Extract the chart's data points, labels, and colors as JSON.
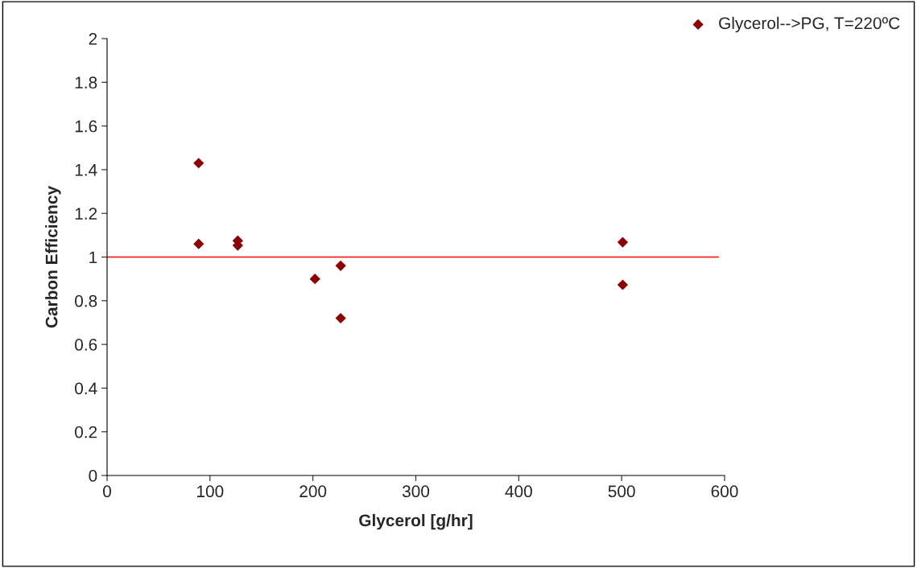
{
  "chart_data": {
    "type": "scatter",
    "xlabel": "Glycerol [g/hr]",
    "ylabel": "Carbon Efficiency",
    "xlim": [
      0,
      600
    ],
    "xticks": [
      0,
      100,
      200,
      300,
      400,
      500,
      600
    ],
    "ylim": [
      0,
      2
    ],
    "yticks": [
      0,
      0.2,
      0.4,
      0.6,
      0.8,
      1,
      1.2,
      1.4,
      1.6,
      1.8,
      2
    ],
    "series": [
      {
        "name": "Glycerol-->PG, T=220ºC",
        "color": "#8b0000",
        "x": [
          89,
          89,
          127,
          127,
          202,
          227,
          227,
          501,
          501
        ],
        "values": [
          1.43,
          1.06,
          1.075,
          1.053,
          0.9,
          0.96,
          0.72,
          1.068,
          0.873
        ]
      }
    ],
    "ref_lines": [
      {
        "axis": "y",
        "value": 1,
        "color": "#ff0000"
      }
    ],
    "marker": "diamond",
    "grid": false,
    "legend": "top right"
  }
}
